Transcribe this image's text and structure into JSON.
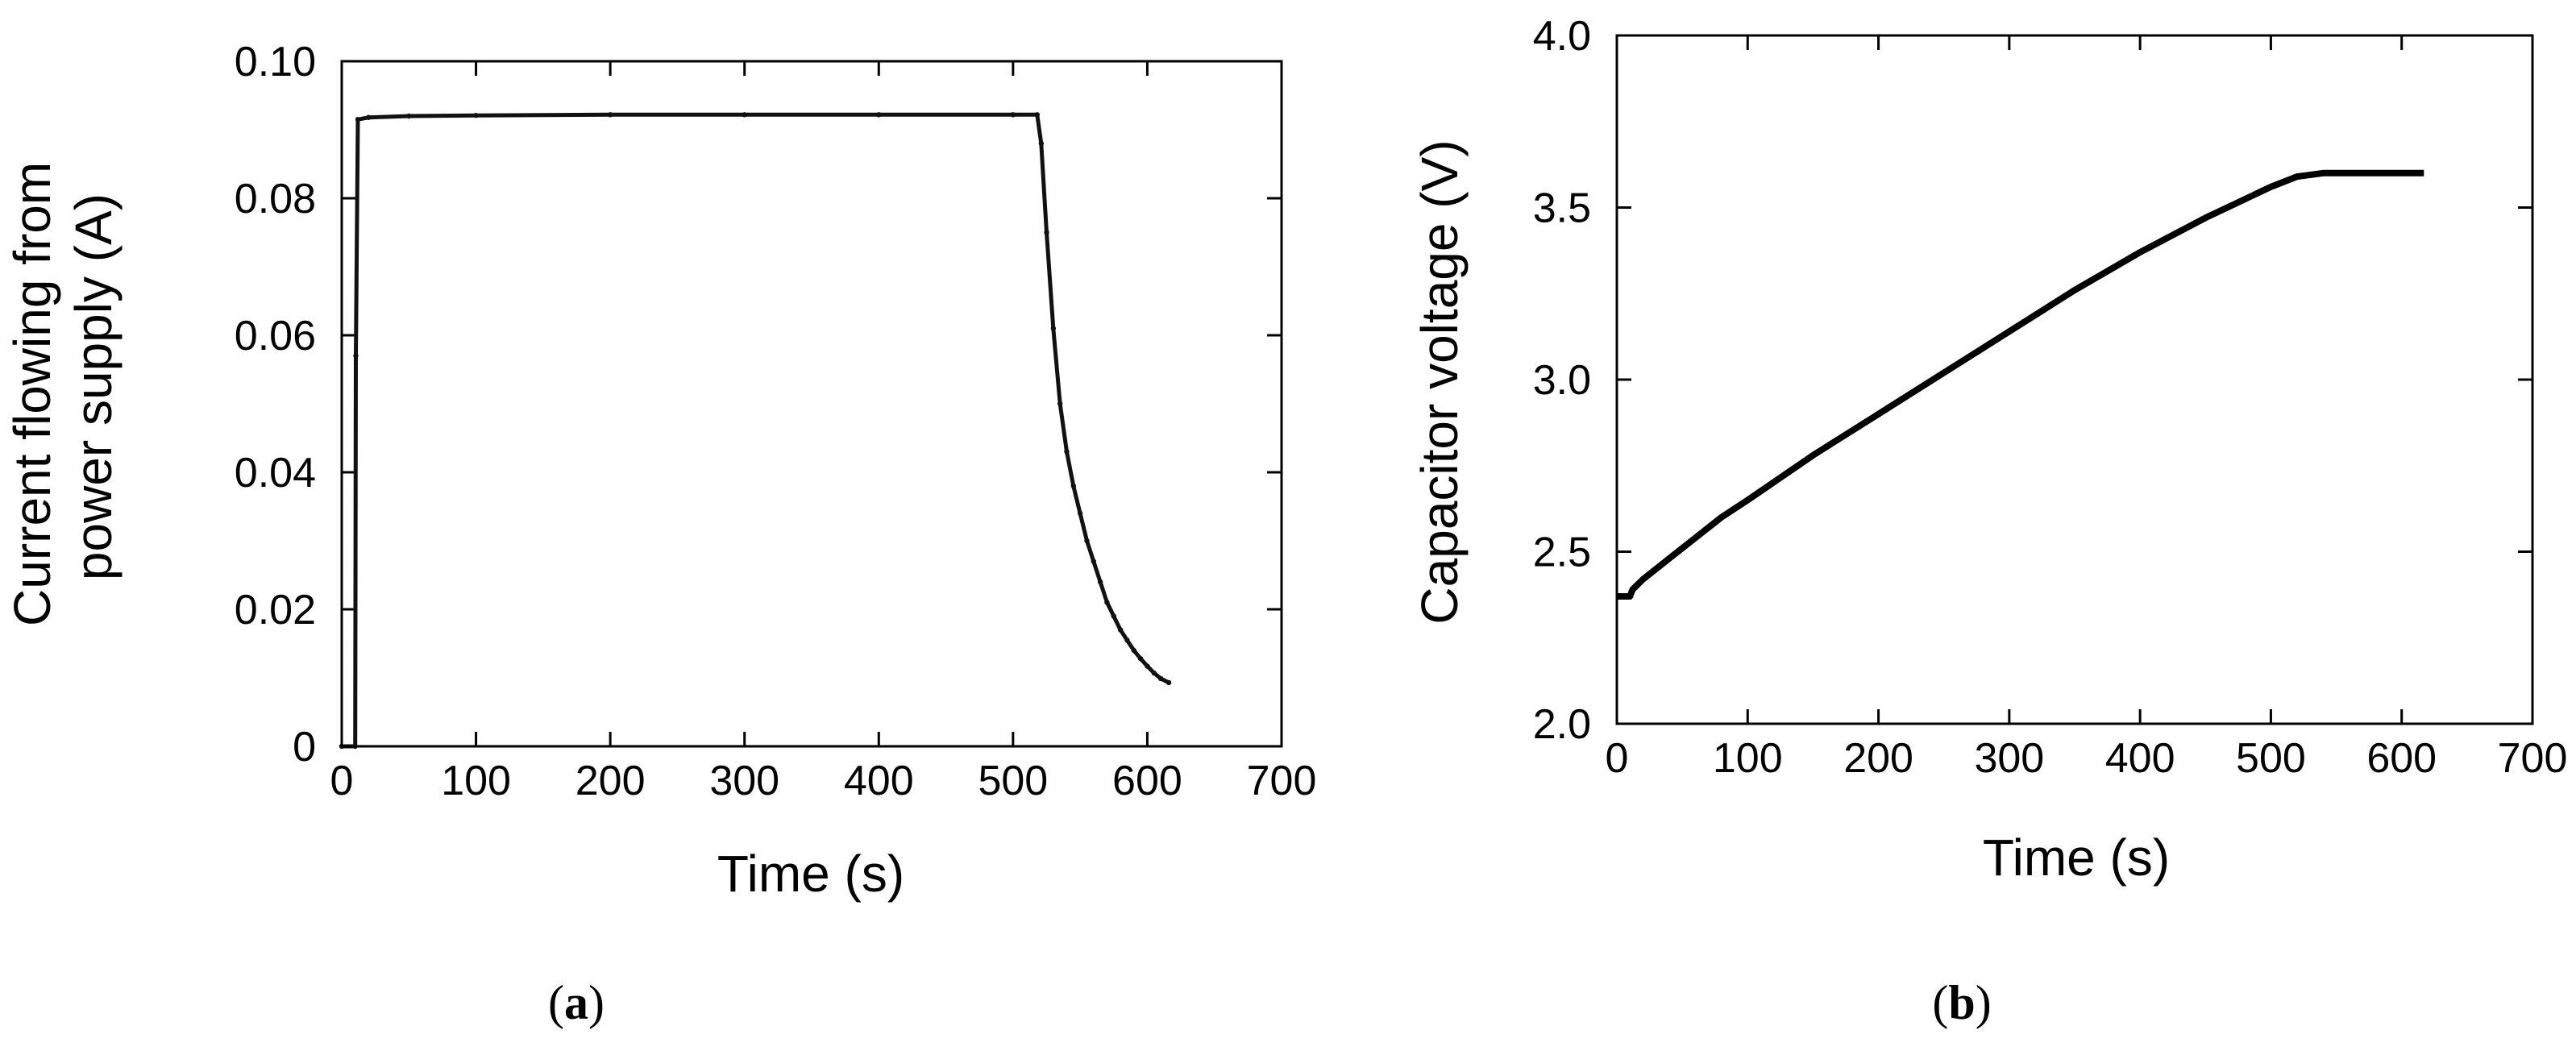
{
  "figure": {
    "panel_labels": [
      "a",
      "b"
    ]
  },
  "chart_data": [
    {
      "id": "a",
      "type": "line",
      "title": "",
      "xlabel": "Time (s)",
      "ylabel_lines": [
        "Current flowing from",
        "power  supply (A)"
      ],
      "xlim": [
        0,
        700
      ],
      "ylim": [
        0,
        0.1
      ],
      "xticks": [
        0,
        100,
        200,
        300,
        400,
        500,
        600,
        700
      ],
      "yticks": [
        0,
        0.02,
        0.04,
        0.06,
        0.08,
        0.1
      ],
      "xtick_labels": [
        "0",
        "100",
        "200",
        "300",
        "400",
        "500",
        "600",
        "700"
      ],
      "ytick_labels": [
        "0",
        "0.02",
        "0.04",
        "0.06",
        "0.08",
        "0.10"
      ],
      "grid": false,
      "color": "#111111",
      "series": [
        {
          "name": "Current",
          "x": [
            0,
            10,
            10.5,
            12,
            20,
            50,
            100,
            200,
            300,
            400,
            500,
            518,
            521,
            525,
            530,
            535,
            540,
            545,
            550,
            555,
            560,
            565,
            570,
            575,
            580,
            585,
            590,
            595,
            600,
            605,
            610,
            616
          ],
          "y": [
            0,
            0,
            0.057,
            0.0915,
            0.0918,
            0.092,
            0.0921,
            0.0922,
            0.0922,
            0.0922,
            0.0922,
            0.0922,
            0.088,
            0.075,
            0.061,
            0.05,
            0.043,
            0.038,
            0.034,
            0.03,
            0.027,
            0.024,
            0.021,
            0.019,
            0.017,
            0.0155,
            0.014,
            0.0128,
            0.0117,
            0.0107,
            0.0099,
            0.0093
          ]
        }
      ]
    },
    {
      "id": "b",
      "type": "line",
      "title": "",
      "xlabel": "Time (s)",
      "ylabel_lines": [
        "Capacitor voltage (V)"
      ],
      "xlim": [
        0,
        700
      ],
      "ylim": [
        2.0,
        4.0
      ],
      "xticks": [
        0,
        100,
        200,
        300,
        400,
        500,
        600,
        700
      ],
      "yticks": [
        2.0,
        2.5,
        3.0,
        3.5,
        4.0
      ],
      "xtick_labels": [
        "0",
        "100",
        "200",
        "300",
        "400",
        "500",
        "600",
        "700"
      ],
      "ytick_labels": [
        "2.0",
        "2.5",
        "3.0",
        "3.5",
        "4.0"
      ],
      "grid": false,
      "color": "#000000",
      "series": [
        {
          "name": "Capacitor voltage",
          "x": [
            0,
            10,
            12,
            20,
            40,
            60,
            80,
            100,
            150,
            200,
            250,
            300,
            350,
            400,
            450,
            500,
            520,
            540,
            560,
            580,
            600,
            617
          ],
          "y": [
            2.37,
            2.37,
            2.39,
            2.42,
            2.48,
            2.54,
            2.6,
            2.65,
            2.78,
            2.9,
            3.02,
            3.14,
            3.26,
            3.37,
            3.47,
            3.56,
            3.59,
            3.6,
            3.6,
            3.6,
            3.6,
            3.6
          ]
        }
      ]
    }
  ]
}
